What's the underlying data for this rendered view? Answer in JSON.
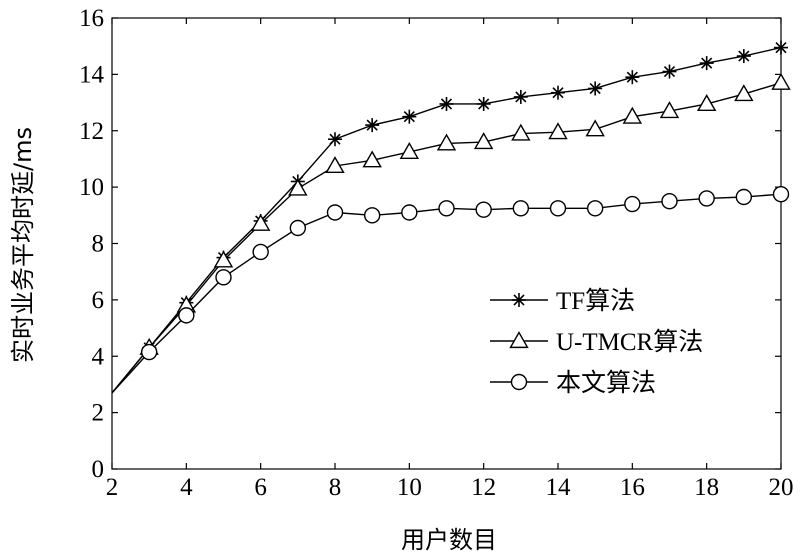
{
  "chart_data": {
    "type": "line",
    "xlabel": "用户数目",
    "ylabel": "实时业务平均时延/ms",
    "xlim": [
      2,
      20
    ],
    "ylim": [
      0,
      16
    ],
    "xticks": [
      2,
      4,
      6,
      8,
      10,
      12,
      14,
      16,
      18,
      20
    ],
    "yticks": [
      0,
      2,
      4,
      6,
      8,
      10,
      12,
      14,
      16
    ],
    "grid": false,
    "legend_position": "right-middle",
    "series": [
      {
        "name": "TF算法",
        "marker": "star",
        "x": [
          2,
          3,
          4,
          5,
          6,
          7,
          8,
          9,
          10,
          11,
          12,
          13,
          14,
          15,
          16,
          17,
          18,
          19,
          20
        ],
        "values": [
          2.7,
          4.3,
          5.9,
          7.5,
          8.8,
          10.2,
          11.7,
          12.2,
          12.5,
          12.95,
          12.95,
          13.2,
          13.35,
          13.5,
          13.9,
          14.1,
          14.4,
          14.65,
          14.95
        ]
      },
      {
        "name": "U-TMCR算法",
        "marker": "triangle",
        "x": [
          2,
          3,
          4,
          5,
          6,
          7,
          8,
          9,
          10,
          11,
          12,
          13,
          14,
          15,
          16,
          17,
          18,
          19,
          20
        ],
        "values": [
          2.7,
          4.3,
          5.8,
          7.4,
          8.7,
          9.95,
          10.75,
          10.95,
          11.25,
          11.55,
          11.6,
          11.9,
          11.95,
          12.05,
          12.5,
          12.7,
          12.95,
          13.3,
          13.7
        ]
      },
      {
        "name": "本文算法",
        "marker": "circle",
        "x": [
          2,
          3,
          4,
          5,
          6,
          7,
          8,
          9,
          10,
          11,
          12,
          13,
          14,
          15,
          16,
          17,
          18,
          19,
          20
        ],
        "values": [
          2.7,
          4.15,
          5.45,
          6.8,
          7.7,
          8.55,
          9.1,
          9.0,
          9.1,
          9.25,
          9.2,
          9.25,
          9.25,
          9.25,
          9.4,
          9.5,
          9.6,
          9.65,
          9.75
        ]
      }
    ]
  }
}
